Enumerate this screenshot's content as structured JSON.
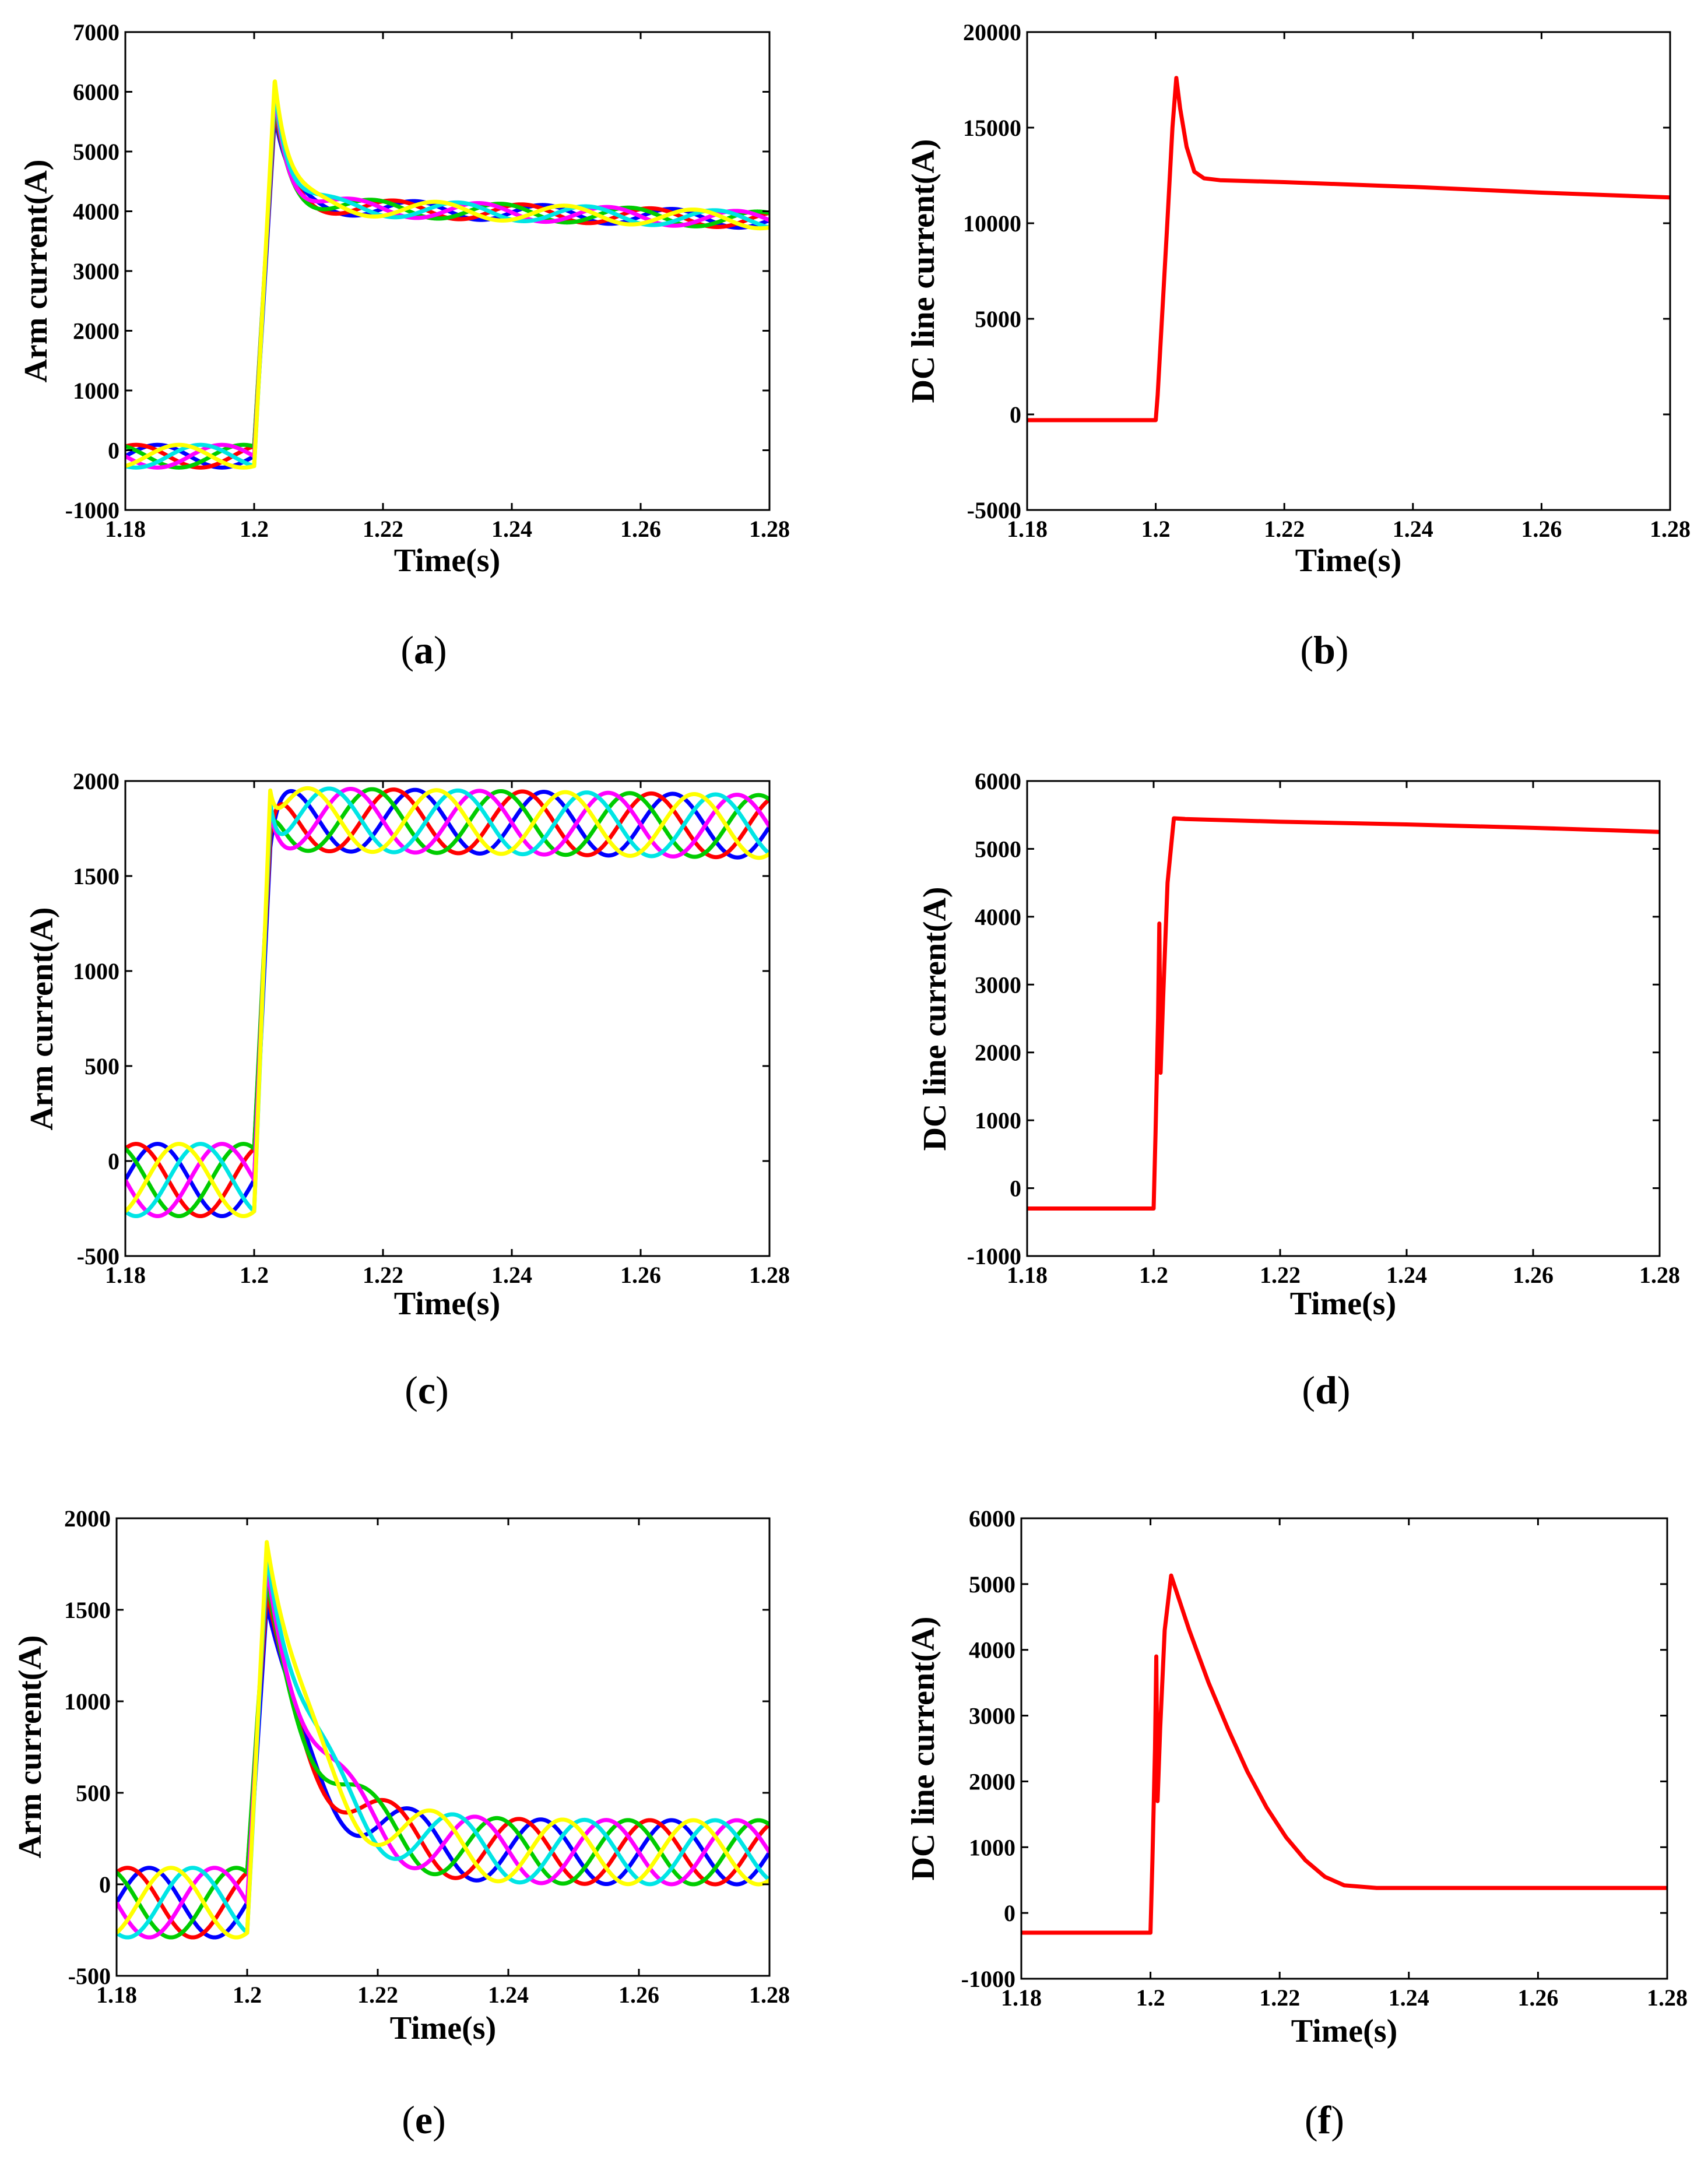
{
  "figure": {
    "captions": [
      "(a)",
      "(b)",
      "(c)",
      "(d)",
      "(e)",
      "(f)"
    ]
  },
  "chart_data": [
    {
      "id": "a",
      "type": "line",
      "caption": "(a)",
      "xlabel": "Time(s)",
      "ylabel": "Arm current(A)",
      "xlim": [
        1.18,
        1.28
      ],
      "ylim": [
        -1000,
        7000
      ],
      "xticks": [
        1.18,
        1.2,
        1.22,
        1.24,
        1.26,
        1.28
      ],
      "xtick_labels": [
        "1.18",
        "1.2",
        "1.22",
        "1.24",
        "1.26",
        "1.28"
      ],
      "yticks": [
        -1000,
        0,
        1000,
        2000,
        3000,
        4000,
        5000,
        6000,
        7000
      ],
      "ytick_labels": [
        "-1000",
        "0",
        "1000",
        "2000",
        "3000",
        "4000",
        "5000",
        "6000",
        "7000"
      ],
      "grid": false,
      "series_colors": [
        "#0000ff",
        "#ff0000",
        "#00cc00",
        "#ff00ff",
        "#00e5e5",
        "#ffff00"
      ],
      "model": {
        "kind": "arm",
        "pre_offset": -100,
        "pre_amp": 190,
        "rise_end": 1.2032,
        "peak": 5900,
        "peak_spread": 300,
        "settle_start": 4100,
        "settle_end": 3850,
        "decay_tau": 0.0022,
        "post_amp": 140
      }
    },
    {
      "id": "b",
      "type": "line",
      "caption": "(b)",
      "xlabel": "Time(s)",
      "ylabel": "DC line current(A)",
      "xlim": [
        1.18,
        1.28
      ],
      "ylim": [
        -5000,
        20000
      ],
      "xticks": [
        1.18,
        1.2,
        1.22,
        1.24,
        1.26,
        1.28
      ],
      "xtick_labels": [
        "1.18",
        "1.2",
        "1.22",
        "1.24",
        "1.26",
        "1.28"
      ],
      "yticks": [
        -5000,
        0,
        5000,
        10000,
        15000,
        20000
      ],
      "ytick_labels": [
        "-5000",
        "0",
        "5000",
        "10000",
        "15000",
        "20000"
      ],
      "grid": false,
      "series_colors": [
        "#ff0000"
      ],
      "points": [
        [
          1.18,
          -300
        ],
        [
          1.2,
          -300
        ],
        [
          1.2003,
          1000
        ],
        [
          1.2018,
          10000
        ],
        [
          1.2026,
          15000
        ],
        [
          1.2032,
          17600
        ],
        [
          1.2038,
          16000
        ],
        [
          1.2048,
          14000
        ],
        [
          1.206,
          12700
        ],
        [
          1.2075,
          12350
        ],
        [
          1.21,
          12250
        ],
        [
          1.22,
          12150
        ],
        [
          1.24,
          11900
        ],
        [
          1.26,
          11600
        ],
        [
          1.28,
          11350
        ]
      ]
    },
    {
      "id": "c",
      "type": "line",
      "caption": "(c)",
      "xlabel": "Time(s)",
      "ylabel": "Arm current(A)",
      "xlim": [
        1.18,
        1.28
      ],
      "ylim": [
        -500,
        2000
      ],
      "xticks": [
        1.18,
        1.2,
        1.22,
        1.24,
        1.26,
        1.28
      ],
      "xtick_labels": [
        "1.18",
        "1.2",
        "1.22",
        "1.24",
        "1.26",
        "1.28"
      ],
      "yticks": [
        -500,
        0,
        500,
        1000,
        1500,
        2000
      ],
      "ytick_labels": [
        "-500",
        "0",
        "500",
        "1000",
        "1500",
        "2000"
      ],
      "grid": false,
      "series_colors": [
        "#0000ff",
        "#ff0000",
        "#00cc00",
        "#ff00ff",
        "#00e5e5",
        "#ffff00"
      ],
      "model": {
        "kind": "arm",
        "pre_offset": -100,
        "pre_amp": 190,
        "rise_end": 1.2025,
        "peak": 1800,
        "peak_spread": 150,
        "settle_start": 1800,
        "settle_end": 1760,
        "decay_tau": 0.001,
        "post_amp": 165
      }
    },
    {
      "id": "d",
      "type": "line",
      "caption": "(d)",
      "xlabel": "Time(s)",
      "ylabel": "DC line current(A)",
      "xlim": [
        1.18,
        1.28
      ],
      "ylim": [
        -1000,
        6000
      ],
      "xticks": [
        1.18,
        1.2,
        1.22,
        1.24,
        1.26,
        1.28
      ],
      "xtick_labels": [
        "1.18",
        "1.2",
        "1.22",
        "1.24",
        "1.26",
        "1.28"
      ],
      "yticks": [
        -1000,
        0,
        1000,
        2000,
        3000,
        4000,
        5000,
        6000
      ],
      "ytick_labels": [
        "-1000",
        "0",
        "1000",
        "2000",
        "3000",
        "4000",
        "5000",
        "6000"
      ],
      "grid": false,
      "series_colors": [
        "#ff0000"
      ],
      "points": [
        [
          1.18,
          -300
        ],
        [
          1.2,
          -300
        ],
        [
          1.2003,
          800
        ],
        [
          1.2007,
          2500
        ],
        [
          1.2009,
          3900
        ],
        [
          1.2011,
          1700
        ],
        [
          1.2015,
          2800
        ],
        [
          1.2022,
          4500
        ],
        [
          1.2032,
          5450
        ],
        [
          1.205,
          5440
        ],
        [
          1.22,
          5400
        ],
        [
          1.24,
          5360
        ],
        [
          1.26,
          5310
        ],
        [
          1.28,
          5250
        ]
      ]
    },
    {
      "id": "e",
      "type": "line",
      "caption": "(e)",
      "xlabel": "Time(s)",
      "ylabel": "Arm current(A)",
      "xlim": [
        1.18,
        1.28
      ],
      "ylim": [
        -500,
        2000
      ],
      "xticks": [
        1.18,
        1.2,
        1.22,
        1.24,
        1.26,
        1.28
      ],
      "xtick_labels": [
        "1.18",
        "1.2",
        "1.22",
        "1.24",
        "1.26",
        "1.28"
      ],
      "yticks": [
        -500,
        0,
        500,
        1000,
        1500,
        2000
      ],
      "ytick_labels": [
        "-500",
        "0",
        "500",
        "1000",
        "1500",
        "2000"
      ],
      "grid": false,
      "series_colors": [
        "#0000ff",
        "#ff0000",
        "#00cc00",
        "#ff00ff",
        "#00e5e5",
        "#ffff00"
      ],
      "model": {
        "kind": "arm_decay",
        "pre_offset": -100,
        "pre_amp": 190,
        "rise_end": 1.203,
        "peak": 1700,
        "peak_spread": 170,
        "decay_tau": 0.0075,
        "final_offset": 175,
        "post_amp": 175,
        "clip_min": 0
      }
    },
    {
      "id": "f",
      "type": "line",
      "caption": "(f)",
      "xlabel": "Time(s)",
      "ylabel": "DC line current(A)",
      "xlim": [
        1.18,
        1.28
      ],
      "ylim": [
        -1000,
        6000
      ],
      "xticks": [
        1.18,
        1.2,
        1.22,
        1.24,
        1.26,
        1.28
      ],
      "xtick_labels": [
        "1.18",
        "1.2",
        "1.22",
        "1.24",
        "1.26",
        "1.28"
      ],
      "yticks": [
        -1000,
        0,
        1000,
        2000,
        3000,
        4000,
        5000,
        6000
      ],
      "ytick_labels": [
        "-1000",
        "0",
        "1000",
        "2000",
        "3000",
        "4000",
        "5000",
        "6000"
      ],
      "grid": false,
      "series_colors": [
        "#ff0000"
      ],
      "points": [
        [
          1.18,
          -300
        ],
        [
          1.2,
          -300
        ],
        [
          1.2003,
          800
        ],
        [
          1.2007,
          2500
        ],
        [
          1.2009,
          3900
        ],
        [
          1.2011,
          1700
        ],
        [
          1.2015,
          2800
        ],
        [
          1.2022,
          4300
        ],
        [
          1.2032,
          5130
        ],
        [
          1.206,
          4300
        ],
        [
          1.209,
          3500
        ],
        [
          1.212,
          2800
        ],
        [
          1.215,
          2150
        ],
        [
          1.218,
          1600
        ],
        [
          1.221,
          1150
        ],
        [
          1.224,
          800
        ],
        [
          1.227,
          550
        ],
        [
          1.23,
          420
        ],
        [
          1.235,
          380
        ],
        [
          1.25,
          380
        ],
        [
          1.28,
          380
        ]
      ]
    }
  ]
}
